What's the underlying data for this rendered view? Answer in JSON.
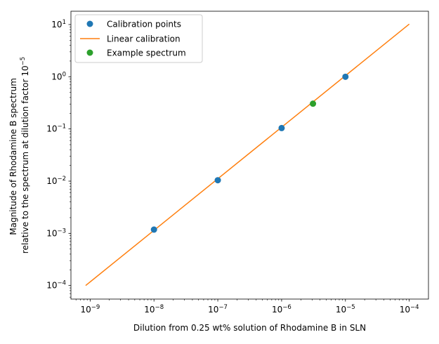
{
  "chart_data": {
    "type": "scatter",
    "xscale": "log",
    "yscale": "log",
    "xlim": [
      5e-10,
      0.0002
    ],
    "ylim": [
      5.5e-05,
      18
    ],
    "xlabel": "Dilution from 0.25 wt% solution of Rhodamine B in SLN",
    "ylabel_line1": "Magnitude of Rhodamine B spectrum",
    "ylabel_line2": "relative to the spectrum at dilution factor 10",
    "ylabel_exp": "−5",
    "x_ticks": [
      {
        "value": 1e-09,
        "base": "10",
        "exp": "−9"
      },
      {
        "value": 1e-08,
        "base": "10",
        "exp": "−8"
      },
      {
        "value": 1e-07,
        "base": "10",
        "exp": "−7"
      },
      {
        "value": 1e-06,
        "base": "10",
        "exp": "−6"
      },
      {
        "value": 1e-05,
        "base": "10",
        "exp": "−5"
      },
      {
        "value": 0.0001,
        "base": "10",
        "exp": "−4"
      }
    ],
    "y_ticks": [
      {
        "value": 0.0001,
        "base": "10",
        "exp": "−4"
      },
      {
        "value": 0.001,
        "base": "10",
        "exp": "−3"
      },
      {
        "value": 0.01,
        "base": "10",
        "exp": "−2"
      },
      {
        "value": 0.1,
        "base": "10",
        "exp": "−1"
      },
      {
        "value": 1,
        "base": "10",
        "exp": "0"
      },
      {
        "value": 10,
        "base": "10",
        "exp": "1"
      }
    ],
    "legend_position": "top-left",
    "series": [
      {
        "name": "Calibration points",
        "kind": "scatter",
        "color": "#1f77b4",
        "points": [
          {
            "x": 1e-08,
            "y": 0.00118
          },
          {
            "x": 1e-07,
            "y": 0.0104
          },
          {
            "x": 1e-06,
            "y": 0.104
          },
          {
            "x": 1e-05,
            "y": 1.0
          }
        ]
      },
      {
        "name": "Linear calibration",
        "kind": "line",
        "color": "#ff7f0e",
        "points": [
          {
            "x": 8.5e-10,
            "y": 0.0001
          },
          {
            "x": 0.0001,
            "y": 10.2
          }
        ]
      },
      {
        "name": "Example spectrum",
        "kind": "scatter",
        "color": "#2ca02c",
        "points": [
          {
            "x": 3.1e-06,
            "y": 0.305
          }
        ]
      }
    ]
  }
}
